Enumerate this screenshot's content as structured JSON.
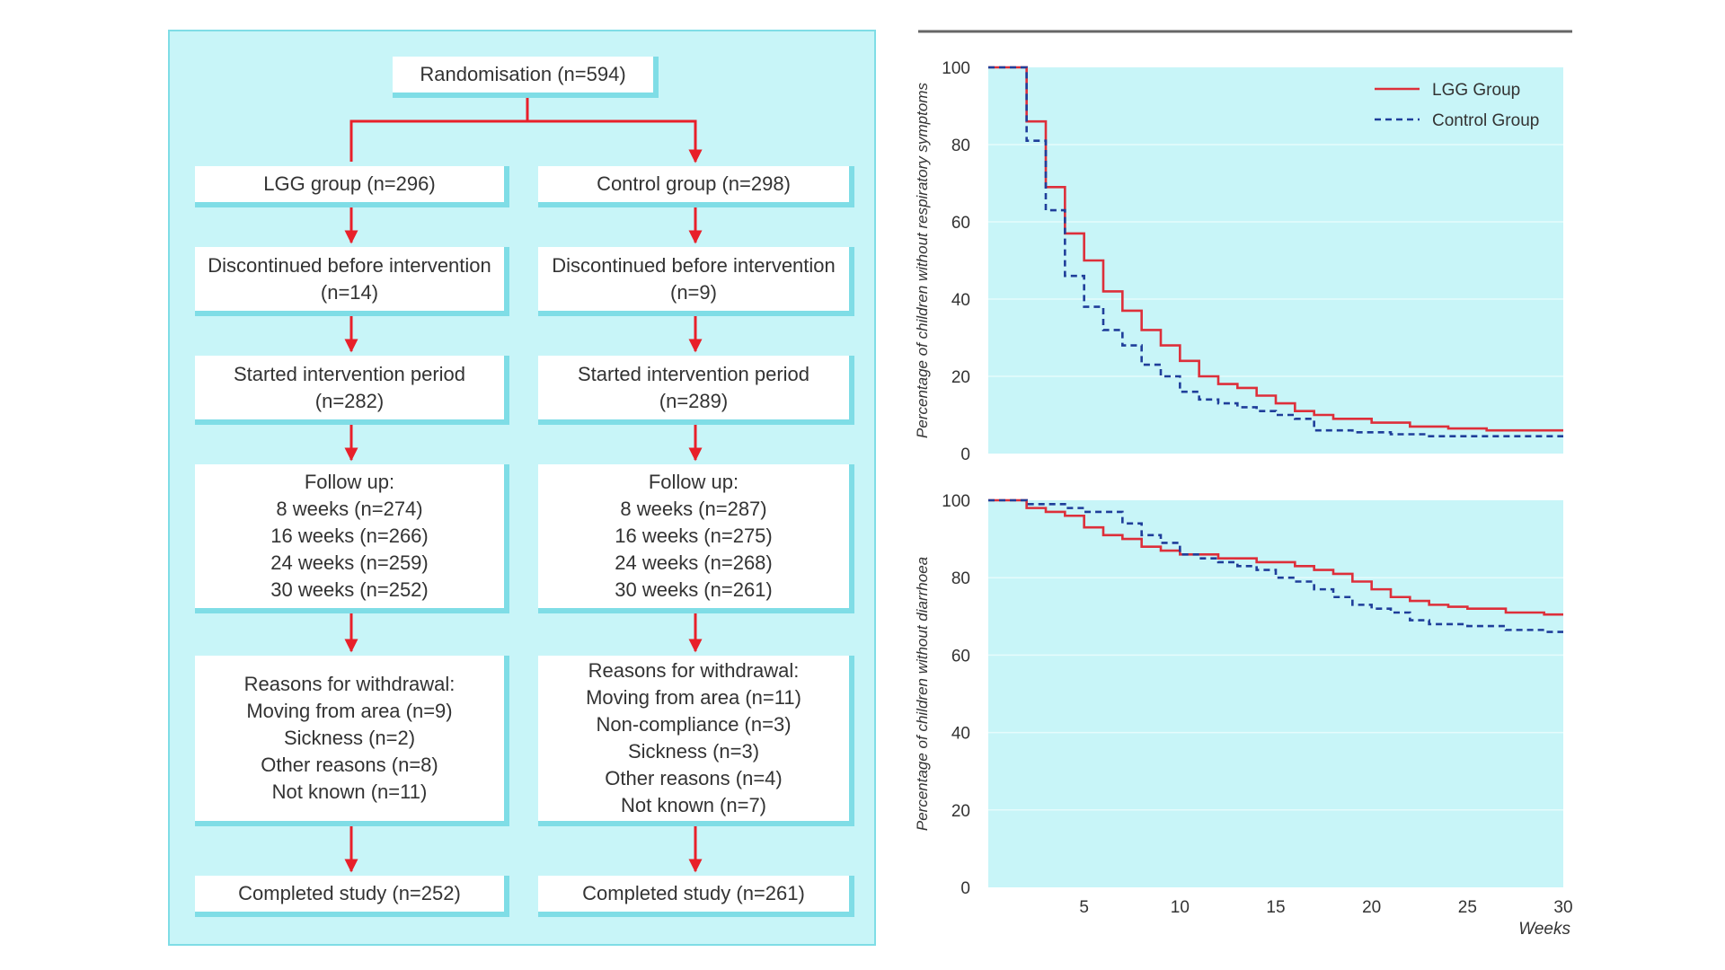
{
  "flowchart": {
    "randomisation": "Randomisation (n=594)",
    "lgg": {
      "group": "LGG group (n=296)",
      "discontinued": [
        "Discontinued before intervention",
        "(n=14)"
      ],
      "started": [
        "Started intervention period",
        "(n=282)"
      ],
      "follow_up": [
        "Follow up:",
        "8 weeks (n=274)",
        "16 weeks (n=266)",
        "24 weeks (n=259)",
        "30 weeks (n=252)"
      ],
      "withdrawal": [
        "Reasons for withdrawal:",
        "Moving from area (n=9)",
        "Sickness (n=2)",
        "Other reasons (n=8)",
        "Not known (n=11)"
      ],
      "completed": "Completed study (n=252)"
    },
    "control": {
      "group": "Control group (n=298)",
      "discontinued": [
        "Discontinued before intervention",
        "(n=9)"
      ],
      "started": [
        "Started intervention period",
        "(n=289)"
      ],
      "follow_up": [
        "Follow up:",
        "8 weeks (n=287)",
        "16 weeks (n=275)",
        "24 weeks (n=268)",
        "30 weeks (n=261)"
      ],
      "withdrawal": [
        "Reasons for withdrawal:",
        "Moving from area (n=11)",
        "Non-compliance (n=3)",
        "Sickness (n=3)",
        "Other reasons (n=4)",
        "Not known (n=7)"
      ],
      "completed": "Completed study (n=261)"
    }
  },
  "colors": {
    "panel_bg": "#c8f5f8",
    "panel_border": "#7fdde6",
    "arrow": "#e8202a",
    "lgg_line": "#dd2f3a",
    "control_line": "#1f3e9a",
    "plot_bg": "#c8f5f8"
  },
  "chart_data": [
    {
      "type": "line",
      "title": "",
      "xlabel": "",
      "ylabel": "Percentage of children without respiratory symptoms",
      "xlim": [
        0,
        30
      ],
      "ylim": [
        0,
        100
      ],
      "yticks": [
        0,
        20,
        40,
        60,
        80,
        100
      ],
      "xticks": [],
      "legend": {
        "position": "top-right",
        "entries": [
          "LGG Group",
          "Control Group"
        ]
      },
      "step": true,
      "series": [
        {
          "name": "LGG Group",
          "style": "solid",
          "x": [
            0,
            2,
            3,
            4,
            5,
            6,
            7,
            8,
            9,
            10,
            11,
            12,
            13,
            14,
            15,
            16,
            17,
            18,
            20,
            22,
            24,
            26,
            30
          ],
          "y": [
            100,
            86,
            69,
            57,
            50,
            42,
            37,
            32,
            28,
            24,
            20,
            18,
            17,
            15,
            13,
            11,
            10,
            9,
            8,
            7,
            6.5,
            6,
            6
          ]
        },
        {
          "name": "Control Group",
          "style": "dashed",
          "x": [
            0,
            2,
            3,
            4,
            5,
            6,
            7,
            8,
            9,
            10,
            11,
            12,
            13,
            14,
            15,
            16,
            17,
            19,
            21,
            23,
            30
          ],
          "y": [
            100,
            81,
            63,
            46,
            38,
            32,
            28,
            23,
            20,
            16,
            14,
            13,
            12,
            11,
            10,
            9,
            6,
            5.5,
            5,
            4.5,
            4.5
          ]
        }
      ]
    },
    {
      "type": "line",
      "title": "",
      "xlabel": "Weeks",
      "ylabel": "Percentage of children without diarrhoea",
      "xlim": [
        0,
        30
      ],
      "ylim": [
        0,
        100
      ],
      "yticks": [
        0,
        20,
        40,
        60,
        80,
        100
      ],
      "xticks": [
        5,
        10,
        15,
        20,
        25,
        30
      ],
      "step": true,
      "series": [
        {
          "name": "LGG Group",
          "style": "solid",
          "x": [
            0,
            2,
            3,
            4,
            5,
            6,
            7,
            8,
            9,
            10,
            12,
            14,
            16,
            17,
            18,
            19,
            20,
            21,
            22,
            23,
            24,
            25,
            27,
            29,
            30
          ],
          "y": [
            100,
            98,
            97,
            96,
            93,
            91,
            90,
            88,
            87,
            86,
            85,
            84,
            83,
            82,
            81,
            79,
            77,
            75,
            74,
            73,
            72.5,
            72,
            71,
            70.5,
            70.5
          ]
        },
        {
          "name": "Control Group",
          "style": "dashed",
          "x": [
            0,
            2,
            4,
            5,
            7,
            8,
            9,
            10,
            11,
            12,
            13,
            14,
            15,
            16,
            17,
            18,
            19,
            20,
            21,
            22,
            23,
            25,
            27,
            29,
            30
          ],
          "y": [
            100,
            99,
            98,
            97,
            94,
            91,
            89,
            86,
            85,
            84,
            83,
            82,
            80,
            79,
            77,
            75,
            73,
            72,
            71,
            69,
            68,
            67.5,
            66.5,
            66,
            66
          ]
        }
      ]
    }
  ]
}
